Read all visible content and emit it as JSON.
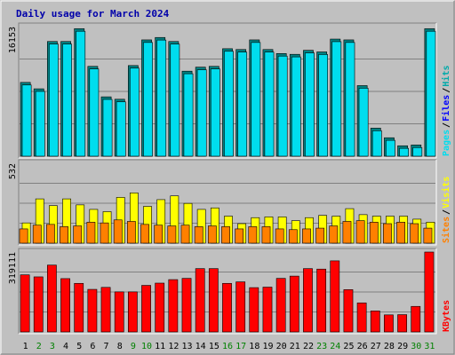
{
  "chart_data": {
    "type": "bar",
    "title": "Daily usage for March 2024",
    "categories": [
      "1",
      "2",
      "3",
      "4",
      "5",
      "6",
      "7",
      "8",
      "9",
      "10",
      "11",
      "12",
      "13",
      "14",
      "15",
      "16",
      "17",
      "18",
      "19",
      "20",
      "21",
      "22",
      "23",
      "24",
      "25",
      "26",
      "27",
      "28",
      "29",
      "30",
      "31"
    ],
    "weekend_categories": [
      "2",
      "3",
      "9",
      "10",
      "16",
      "17",
      "23",
      "24",
      "30",
      "31"
    ],
    "colors": {
      "hits": "#00aaaa",
      "files": "#0000ff",
      "pages": "#00ddee",
      "visits": "#ffff00",
      "sites": "#ff8000",
      "kbytes": "#ff0000",
      "title": "#0000aa",
      "weekday": "#000000",
      "weekend": "#008000"
    },
    "panels": [
      {
        "id": "top",
        "ymax_label": "16153",
        "ymax": 16153,
        "legend": [
          {
            "text": "Hits",
            "color": "#00aaaa"
          },
          {
            "text": "/",
            "color": "#000000"
          },
          {
            "text": "Files",
            "color": "#0000ff"
          },
          {
            "text": "/",
            "color": "#000000"
          },
          {
            "text": "Pages",
            "color": "#00ddee"
          }
        ],
        "series": [
          {
            "name": "Hits",
            "values": [
              9200,
              8400,
              14300,
              14300,
              15900,
              11200,
              7400,
              7100,
              11300,
              14500,
              14800,
              14300,
              10600,
              11100,
              11200,
              13400,
              13300,
              14500,
              13300,
              12800,
              12700,
              13200,
              13000,
              14600,
              14500,
              8800,
              3500,
              2300,
              1300,
              1400,
              15900
            ]
          },
          {
            "name": "Pages",
            "values": [
              9100,
              8300,
              14200,
              14200,
              15800,
              11100,
              7300,
              7000,
              11200,
              14400,
              14700,
              14200,
              10500,
              11000,
              11100,
              13300,
              13200,
              14400,
              13200,
              12700,
              12600,
              13100,
              12900,
              14500,
              14400,
              8700,
              3400,
              2200,
              1200,
              1300,
              15800
            ]
          }
        ]
      },
      {
        "id": "middle",
        "ymax_label": "532",
        "ymax": 532,
        "legend": [
          {
            "text": "Visits",
            "color": "#ffff00"
          },
          {
            "text": "/",
            "color": "#000000"
          },
          {
            "text": "Sites",
            "color": "#ff8000"
          }
        ],
        "series": [
          {
            "name": "Visits",
            "values": [
              135,
              295,
              250,
              295,
              255,
              225,
              210,
              305,
              335,
              245,
              290,
              315,
              265,
              225,
              235,
              180,
              130,
              170,
              175,
              175,
              150,
              170,
              185,
              180,
              230,
              190,
              180,
              180,
              180,
              160,
              140
            ]
          },
          {
            "name": "Sites",
            "values": [
              95,
              120,
              125,
              110,
              115,
              140,
              135,
              155,
              145,
              125,
              120,
              115,
              120,
              110,
              115,
              110,
              95,
              110,
              110,
              95,
              90,
              95,
              100,
              115,
              145,
              150,
              140,
              130,
              140,
              130,
              100
            ]
          }
        ]
      },
      {
        "id": "bottom",
        "ymax_label": "319111",
        "ymax": 319111,
        "legend": [
          {
            "text": "KBytes",
            "color": "#ff0000"
          }
        ],
        "series": [
          {
            "name": "KBytes",
            "values": [
              228000,
              220000,
              267000,
              213000,
              194000,
              170000,
              178000,
              160000,
              160000,
              186000,
              195000,
              209000,
              214000,
              253000,
              253000,
              194000,
              200000,
              177000,
              179000,
              214000,
              223000,
              253000,
              251000,
              284000,
              169000,
              116000,
              84000,
              68000,
              69000,
              102000,
              319111
            ]
          }
        ]
      }
    ]
  }
}
